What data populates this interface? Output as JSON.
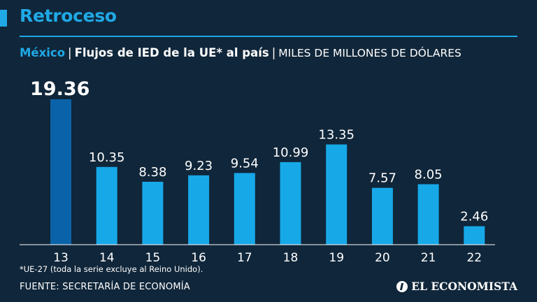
{
  "header": {
    "headline": "Retroceso",
    "country": "México",
    "separator": "|",
    "title": "Flujos de IED de la UE* al país",
    "units": "MILES DE MILLONES DE DÓLARES"
  },
  "colors": {
    "accent": "#1fa9e6",
    "bar": "#17a8e8",
    "bar_highlight": "#0a63a8",
    "background": "#10263a"
  },
  "chart_data": {
    "type": "bar",
    "title": "Flujos de IED de la UE* al país",
    "ylabel": "Miles de millones de dólares",
    "xlabel": "",
    "categories": [
      "13",
      "14",
      "15",
      "16",
      "17",
      "18",
      "19",
      "20",
      "21",
      "22"
    ],
    "values": [
      19.36,
      10.35,
      8.38,
      9.23,
      9.54,
      10.99,
      13.35,
      7.57,
      8.05,
      2.46
    ],
    "value_labels": [
      "19.36",
      "10.35",
      "8.38",
      "9.23",
      "9.54",
      "10.99",
      "13.35",
      "7.57",
      "8.05",
      "2.46"
    ],
    "highlight_index": 0,
    "ylim": [
      0,
      19.36
    ],
    "grid": false,
    "legend": "none"
  },
  "footer": {
    "footnote": "*UE-27 (toda la serie excluye al Reino Unido).",
    "source": "FUENTE: SECRETARÍA DE ECONOMÍA",
    "brand_name": "EL ECONOMISTA",
    "brand_icon": "el-economista-logo-icon"
  }
}
